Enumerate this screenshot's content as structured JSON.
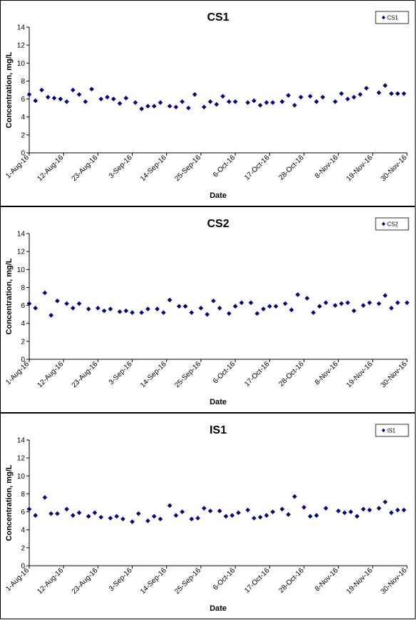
{
  "chart_data": [
    {
      "type": "scatter",
      "title": "CS1",
      "xlabel": "Date",
      "ylabel": "Concentration, mg/L",
      "ylim": [
        0,
        14
      ],
      "yticks": [
        0,
        2,
        4,
        6,
        8,
        10,
        12,
        14
      ],
      "xlim": [
        "1-Aug-16",
        "30-Nov-16"
      ],
      "xticks": [
        "1-Aug-16",
        "12-Aug-16",
        "23-Aug-16",
        "3-Sep-16",
        "14-Sep-16",
        "25-Sep-16",
        "6-Oct-16",
        "17-Oct-16",
        "28-Oct-16",
        "8-Nov-16",
        "19-Nov-16",
        "30-Nov-16"
      ],
      "grid": false,
      "legend": "top-right",
      "color": "#000080",
      "series": [
        {
          "name": "CS1",
          "x": [
            "2016-08-01",
            "2016-08-03",
            "2016-08-05",
            "2016-08-07",
            "2016-08-09",
            "2016-08-11",
            "2016-08-13",
            "2016-08-15",
            "2016-08-17",
            "2016-08-19",
            "2016-08-21",
            "2016-08-24",
            "2016-08-26",
            "2016-08-28",
            "2016-08-30",
            "2016-09-01",
            "2016-09-04",
            "2016-09-06",
            "2016-09-08",
            "2016-09-10",
            "2016-09-12",
            "2016-09-15",
            "2016-09-17",
            "2016-09-19",
            "2016-09-21",
            "2016-09-23",
            "2016-09-26",
            "2016-09-28",
            "2016-09-30",
            "2016-10-02",
            "2016-10-04",
            "2016-10-06",
            "2016-10-10",
            "2016-10-12",
            "2016-10-14",
            "2016-10-16",
            "2016-10-18",
            "2016-10-21",
            "2016-10-23",
            "2016-10-25",
            "2016-10-27",
            "2016-10-30",
            "2016-11-01",
            "2016-11-03",
            "2016-11-07",
            "2016-11-09",
            "2016-11-11",
            "2016-11-13",
            "2016-11-15",
            "2016-11-17",
            "2016-11-21",
            "2016-11-23",
            "2016-11-25",
            "2016-11-27",
            "2016-11-29"
          ],
          "y": [
            6.5,
            5.8,
            7.0,
            6.2,
            6.1,
            6.0,
            5.7,
            7.0,
            6.5,
            5.7,
            7.1,
            6.0,
            6.2,
            6.0,
            5.5,
            6.1,
            5.6,
            4.9,
            5.2,
            5.2,
            5.6,
            5.2,
            5.1,
            5.7,
            5.0,
            6.5,
            5.1,
            5.7,
            5.4,
            6.3,
            5.7,
            5.7,
            5.6,
            5.8,
            5.3,
            5.6,
            5.6,
            5.7,
            6.4,
            5.3,
            6.2,
            6.3,
            5.7,
            6.2,
            5.7,
            6.6,
            6.0,
            6.2,
            6.5,
            7.2,
            6.7,
            7.5,
            6.6,
            6.6,
            6.6
          ]
        }
      ]
    },
    {
      "type": "scatter",
      "title": "CS2",
      "xlabel": "Date",
      "ylabel": "Concentration, mg/L",
      "ylim": [
        0,
        14
      ],
      "yticks": [
        0,
        2,
        4,
        6,
        8,
        10,
        12,
        14
      ],
      "xlim": [
        "1-Aug-16",
        "30-Nov-16"
      ],
      "xticks": [
        "1-Aug-16",
        "12-Aug-16",
        "23-Aug-16",
        "3-Sep-16",
        "14-Sep-16",
        "25-Sep-16",
        "6-Oct-16",
        "17-Oct-16",
        "28-Oct-16",
        "8-Nov-16",
        "19-Nov-16",
        "30-Nov-16"
      ],
      "grid": false,
      "legend": "top-right",
      "color": "#000080",
      "series": [
        {
          "name": "CS2",
          "x": [
            "2016-08-01",
            "2016-08-03",
            "2016-08-06",
            "2016-08-08",
            "2016-08-10",
            "2016-08-13",
            "2016-08-15",
            "2016-08-17",
            "2016-08-20",
            "2016-08-23",
            "2016-08-25",
            "2016-08-27",
            "2016-08-30",
            "2016-09-01",
            "2016-09-03",
            "2016-09-06",
            "2016-09-08",
            "2016-09-11",
            "2016-09-13",
            "2016-09-15",
            "2016-09-18",
            "2016-09-20",
            "2016-09-22",
            "2016-09-25",
            "2016-09-27",
            "2016-09-29",
            "2016-10-01",
            "2016-10-04",
            "2016-10-06",
            "2016-10-08",
            "2016-10-11",
            "2016-10-13",
            "2016-10-15",
            "2016-10-17",
            "2016-10-19",
            "2016-10-22",
            "2016-10-24",
            "2016-10-26",
            "2016-10-29",
            "2016-10-31",
            "2016-11-02",
            "2016-11-04",
            "2016-11-07",
            "2016-11-09",
            "2016-11-11",
            "2016-11-13",
            "2016-11-16",
            "2016-11-18",
            "2016-11-21",
            "2016-11-23",
            "2016-11-25",
            "2016-11-27",
            "2016-11-30"
          ],
          "y": [
            6.2,
            5.7,
            7.4,
            4.9,
            6.5,
            6.2,
            5.7,
            6.2,
            5.6,
            5.7,
            5.4,
            5.6,
            5.3,
            5.4,
            5.2,
            5.2,
            5.6,
            5.6,
            5.2,
            6.6,
            5.9,
            5.9,
            5.2,
            5.7,
            5.0,
            6.5,
            5.7,
            5.1,
            5.9,
            6.3,
            6.3,
            5.1,
            5.6,
            5.9,
            5.9,
            6.2,
            5.5,
            7.2,
            6.8,
            5.2,
            5.9,
            6.3,
            6.0,
            6.2,
            6.3,
            5.4,
            6.0,
            6.3,
            6.2,
            7.1,
            5.7,
            6.3,
            6.3
          ]
        }
      ]
    },
    {
      "type": "scatter",
      "title": "IS1",
      "xlabel": "Date",
      "ylabel": "Concentration, mg/L",
      "ylim": [
        0,
        14
      ],
      "yticks": [
        0,
        2,
        4,
        6,
        8,
        10,
        12,
        14
      ],
      "xlim": [
        "1-Aug-16",
        "30-Nov-16"
      ],
      "xticks": [
        "1-Aug-16",
        "12-Aug-16",
        "23-Aug-16",
        "3-Sep-16",
        "14-Sep-16",
        "25-Sep-16",
        "6-Oct-16",
        "17-Oct-16",
        "28-Oct-16",
        "8-Nov-16",
        "19-Nov-16",
        "30-Nov-16"
      ],
      "grid": false,
      "legend": "top-right",
      "color": "#000080",
      "series": [
        {
          "name": "IS1",
          "x": [
            "2016-08-01",
            "2016-08-03",
            "2016-08-06",
            "2016-08-08",
            "2016-08-10",
            "2016-08-13",
            "2016-08-15",
            "2016-08-17",
            "2016-08-20",
            "2016-08-22",
            "2016-08-24",
            "2016-08-27",
            "2016-08-29",
            "2016-08-31",
            "2016-09-03",
            "2016-09-05",
            "2016-09-08",
            "2016-09-10",
            "2016-09-12",
            "2016-09-15",
            "2016-09-17",
            "2016-09-19",
            "2016-09-22",
            "2016-09-24",
            "2016-09-26",
            "2016-09-28",
            "2016-10-01",
            "2016-10-03",
            "2016-10-05",
            "2016-10-07",
            "2016-10-10",
            "2016-10-12",
            "2016-10-14",
            "2016-10-16",
            "2016-10-18",
            "2016-10-21",
            "2016-10-23",
            "2016-10-25",
            "2016-10-28",
            "2016-10-30",
            "2016-11-01",
            "2016-11-04",
            "2016-11-08",
            "2016-11-10",
            "2016-11-12",
            "2016-11-14",
            "2016-11-16",
            "2016-11-18",
            "2016-11-21",
            "2016-11-23",
            "2016-11-25",
            "2016-11-27",
            "2016-11-29"
          ],
          "y": [
            6.3,
            5.6,
            7.6,
            5.8,
            5.8,
            6.3,
            5.6,
            5.9,
            5.5,
            5.9,
            5.4,
            5.3,
            5.5,
            5.2,
            4.9,
            5.8,
            5.0,
            5.5,
            5.2,
            6.7,
            5.6,
            6.0,
            5.2,
            5.3,
            6.4,
            6.1,
            6.1,
            5.5,
            5.6,
            5.9,
            6.2,
            5.3,
            5.4,
            5.6,
            6.0,
            6.3,
            5.7,
            7.7,
            6.5,
            5.5,
            5.6,
            6.4,
            6.1,
            5.9,
            6.0,
            5.5,
            6.3,
            6.2,
            6.4,
            7.1,
            5.9,
            6.2,
            6.2
          ]
        }
      ]
    }
  ]
}
